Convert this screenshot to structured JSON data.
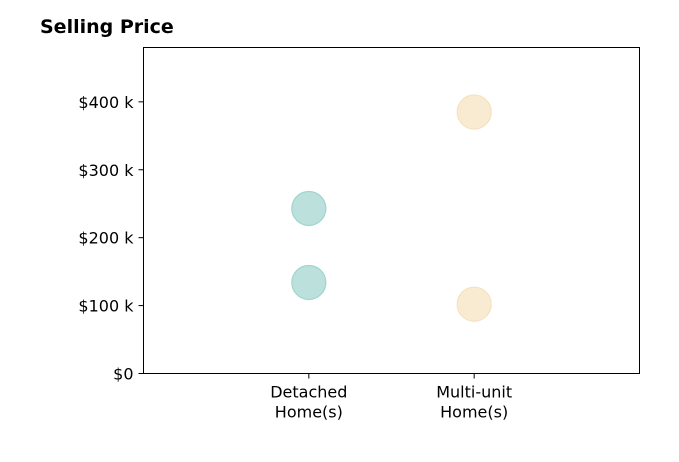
{
  "chart_data": {
    "type": "scatter",
    "title": "Selling Price",
    "categories": [
      "Detached\nHome(s)",
      "Multi-unit\nHome(s)"
    ],
    "ytick_labels": [
      "$0",
      "$100 k",
      "$200 k",
      "$300 k",
      "$400 k"
    ],
    "yticks": [
      0,
      100000,
      200000,
      300000,
      400000
    ],
    "ylim": [
      0,
      480000
    ],
    "xlim": [
      -1,
      2
    ],
    "grid": false,
    "series": [
      {
        "category_index": 0,
        "color": "#9fd4cf",
        "values": [
          243000,
          134000
        ]
      },
      {
        "category_index": 1,
        "color": "#f6e2be",
        "values": [
          385000,
          102000
        ]
      }
    ]
  }
}
